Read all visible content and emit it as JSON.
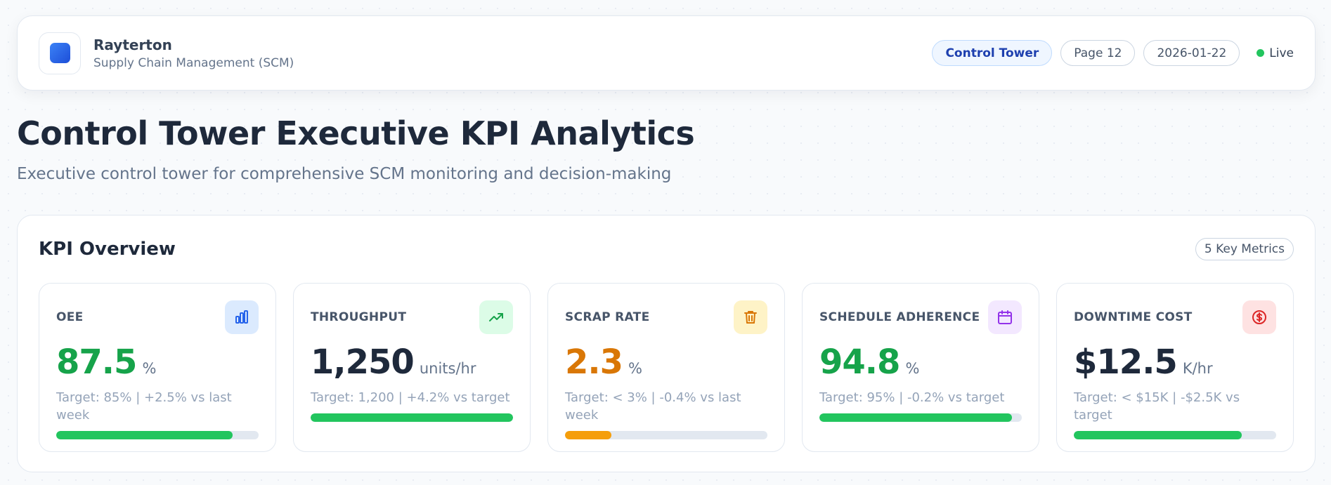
{
  "header": {
    "brand": "Rayterton",
    "subtitle": "Supply Chain Management (SCM)",
    "tags": [
      "Control Tower",
      "Page 12",
      "2026-01-22"
    ],
    "status": "Live"
  },
  "page": {
    "title": "Control Tower Executive KPI Analytics",
    "subtitle": "Executive control tower for comprehensive SCM monitoring and decision-making"
  },
  "kpi": {
    "title": "KPI Overview",
    "badge": "5 Key Metrics",
    "cards": [
      {
        "label": "OEE",
        "value": "87.5",
        "unit": "%",
        "note": "Target: 85% | +2.5% vs last week",
        "progress": 87,
        "value_color": "#16a34a",
        "bar_color": "#22c55e",
        "icon_bg": "#dbeafe",
        "icon_color": "#2563eb"
      },
      {
        "label": "THROUGHPUT",
        "value": "1,250",
        "unit": "units/hr",
        "note": "Target: 1,200 | +4.2% vs target",
        "progress": 100,
        "value_color": "#1e293b",
        "bar_color": "#22c55e",
        "icon_bg": "#dcfce7",
        "icon_color": "#16a34a"
      },
      {
        "label": "SCRAP RATE",
        "value": "2.3",
        "unit": "%",
        "note": "Target: < 3% | -0.4% vs last week",
        "progress": 23,
        "value_color": "#d97706",
        "bar_color": "#f59e0b",
        "icon_bg": "#fef3c7",
        "icon_color": "#d97706"
      },
      {
        "label": "SCHEDULE ADHERENCE",
        "value": "94.8",
        "unit": "%",
        "note": "Target: 95% | -0.2% vs target",
        "progress": 95,
        "value_color": "#16a34a",
        "bar_color": "#22c55e",
        "icon_bg": "#f3e8ff",
        "icon_color": "#9333ea"
      },
      {
        "label": "DOWNTIME COST",
        "value": "$12.5",
        "unit": "K/hr",
        "note": "Target: < $15K | -$2.5K vs target",
        "progress": 83,
        "value_color": "#1e293b",
        "bar_color": "#22c55e",
        "icon_bg": "#fee2e2",
        "icon_color": "#dc2626"
      }
    ]
  }
}
